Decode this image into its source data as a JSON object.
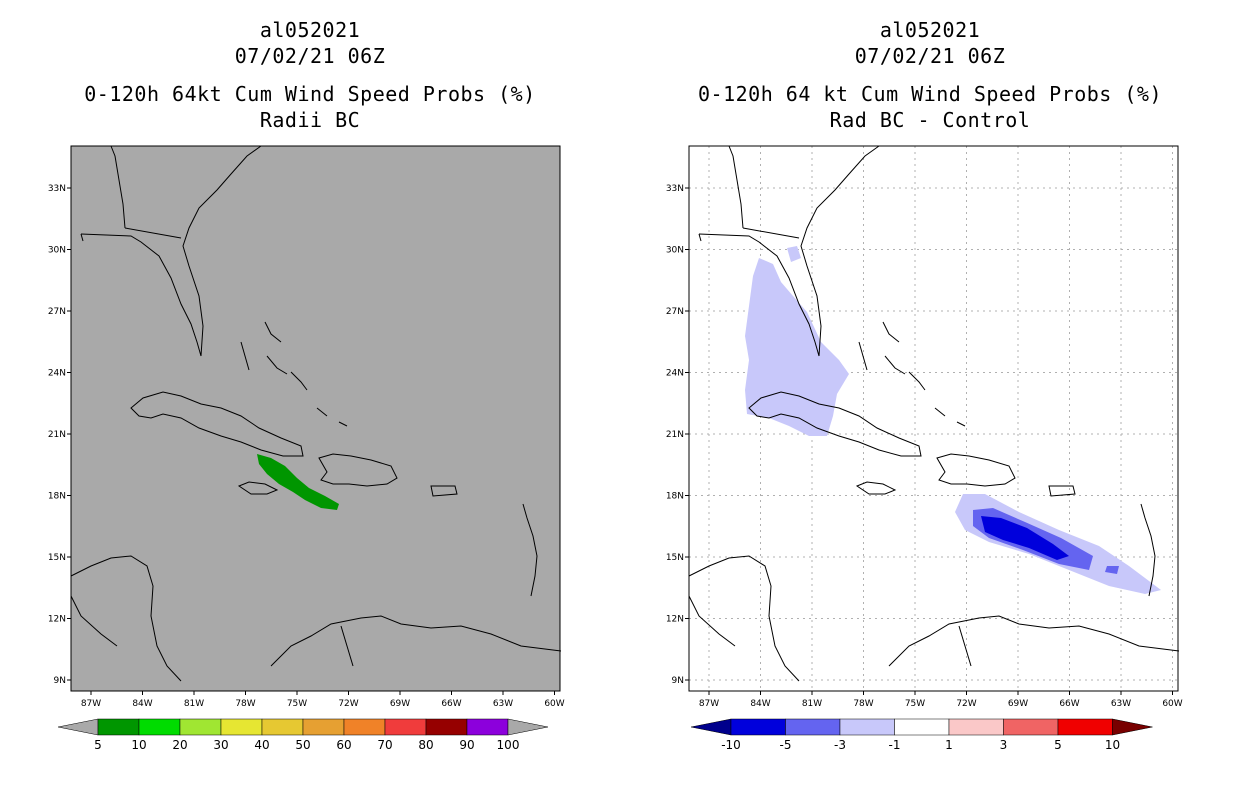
{
  "left_panel": {
    "title_line1": "al052021",
    "title_line2": "07/02/21 06Z",
    "title_line3": "0-120h 64kt Cum Wind Speed Probs (%)",
    "title_line4": "Radii BC",
    "background_color": "#a9a9a9",
    "swath_color": "#009600",
    "colorbar": {
      "labels": [
        "5",
        "10",
        "20",
        "30",
        "40",
        "50",
        "60",
        "70",
        "80",
        "90",
        "100"
      ],
      "colors": [
        "#009600",
        "#00dc00",
        "#a0e632",
        "#e6e632",
        "#e6c832",
        "#e6a032",
        "#f08228",
        "#f03c3c",
        "#960000",
        "#8c00dc"
      ],
      "end_color": "#a9a9a9"
    }
  },
  "right_panel": {
    "title_line1": "al052021",
    "title_line2": "07/02/21 06Z",
    "title_line3": "0-120h 64 kt Cum Wind Speed Probs (%)",
    "title_line4": "Rad BC - Control",
    "background_color": "#ffffff",
    "colorbar": {
      "labels": [
        "-10",
        "-5",
        "-3",
        "-1",
        "1",
        "3",
        "5",
        "10"
      ],
      "colors": [
        "#0000dc",
        "#6464f0",
        "#c8c8fa",
        "#ffffff",
        "#fac8c8",
        "#f06464",
        "#f00000"
      ],
      "left_end_color": "#00008c",
      "right_end_color": "#780000"
    }
  },
  "map_axes": {
    "lat_labels": [
      "33N",
      "30N",
      "27N",
      "24N",
      "21N",
      "18N",
      "15N",
      "12N",
      "9N"
    ],
    "lon_labels": [
      "87W",
      "84W",
      "81W",
      "78W",
      "75W",
      "72W",
      "69W",
      "66W",
      "63W",
      "60W"
    ]
  }
}
